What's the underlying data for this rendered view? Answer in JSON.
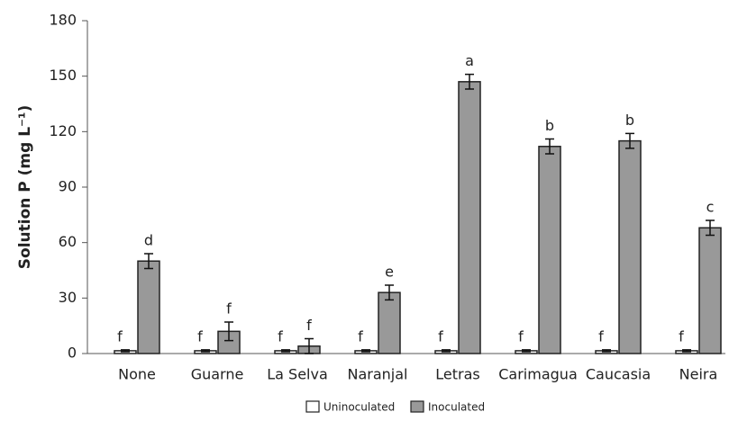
{
  "chart_data": {
    "type": "bar",
    "y_label": "Solution P (mg L⁻¹)",
    "categories": [
      "None",
      "Guarne",
      "La Selva",
      "Naranjal",
      "Letras",
      "Carimagua",
      "Caucasia",
      "Neira"
    ],
    "series": [
      {
        "name": "Uninoculated",
        "color": "#ffffff",
        "values": [
          1.5,
          1.5,
          1.5,
          1.5,
          1.5,
          1.5,
          1.5,
          1.5
        ],
        "errors": [
          0.5,
          0.5,
          0.5,
          0.5,
          0.5,
          0.5,
          0.5,
          0.5
        ],
        "letters": [
          "f",
          "f",
          "f",
          "f",
          "f",
          "f",
          "f",
          "f"
        ]
      },
      {
        "name": "Inoculated",
        "color": "#999999",
        "values": [
          50,
          12,
          4,
          33,
          147,
          112,
          115,
          68
        ],
        "errors": [
          4,
          5,
          4,
          4,
          4,
          4,
          4,
          4
        ],
        "letters": [
          "d",
          "f",
          "f",
          "e",
          "a",
          "b",
          "b",
          "c"
        ]
      }
    ],
    "ylim": [
      0,
      180
    ],
    "yticks": [
      0,
      30,
      60,
      90,
      120,
      150,
      180
    ]
  }
}
